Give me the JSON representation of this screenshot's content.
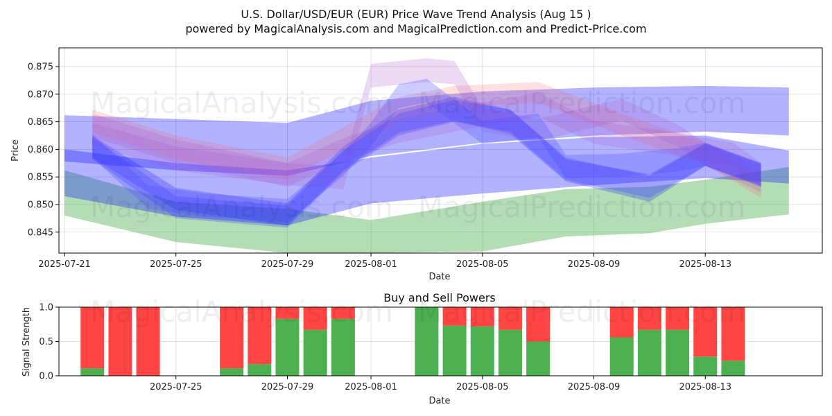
{
  "chart_data": [
    {
      "type": "area",
      "title": "U.S. Dollar/USD/EUR (EUR) Price Wave Trend Analysis (Aug 15 )",
      "subtitle": "powered by MagicalAnalysis.com and MagicalPrediction.com and Predict-Price.com",
      "xlabel": "Date",
      "ylabel": "Price",
      "x_ticks": [
        "2025-07-21",
        "2025-07-25",
        "2025-07-29",
        "2025-08-01",
        "2025-08-05",
        "2025-08-09",
        "2025-08-13"
      ],
      "y_ticks": [
        "0.845",
        "0.850",
        "0.855",
        "0.860",
        "0.865",
        "0.870",
        "0.875"
      ],
      "xlim": [
        "2025-07-20.8",
        "2025-08-17.2"
      ],
      "ylim": [
        0.8412,
        0.8784
      ],
      "grid": true,
      "bands": [
        {
          "color": "#4caf50",
          "opacity": 0.42,
          "x": [
            "2025-07-21",
            "2025-07-25",
            "2025-07-29",
            "2025-08-01",
            "2025-08-05",
            "2025-08-08",
            "2025-08-11",
            "2025-08-13",
            "2025-08-16"
          ],
          "upper": [
            0.8562,
            0.8505,
            0.8492,
            0.8472,
            0.8505,
            0.8528,
            0.8532,
            0.8545,
            0.8568
          ],
          "lower": [
            0.848,
            0.8432,
            0.8412,
            0.8412,
            0.8415,
            0.8442,
            0.8448,
            0.8465,
            0.8482
          ]
        },
        {
          "color": "#0000ff",
          "opacity": 0.3,
          "x": [
            "2025-07-21",
            "2025-07-25",
            "2025-07-29",
            "2025-08-01",
            "2025-08-05",
            "2025-08-09",
            "2025-08-13",
            "2025-08-16"
          ],
          "upper": [
            0.8662,
            0.8655,
            0.8648,
            0.8688,
            0.8705,
            0.8712,
            0.8715,
            0.8712
          ],
          "lower": [
            0.8578,
            0.8562,
            0.8552,
            0.8588,
            0.8612,
            0.8625,
            0.8632,
            0.8625
          ]
        },
        {
          "color": "#0000ff",
          "opacity": 0.3,
          "x": [
            "2025-07-21",
            "2025-07-25",
            "2025-07-29",
            "2025-08-01",
            "2025-08-05",
            "2025-08-09",
            "2025-08-13",
            "2025-08-16"
          ],
          "upper": [
            0.86,
            0.8575,
            0.8562,
            0.8585,
            0.861,
            0.8622,
            0.8625,
            0.8598
          ],
          "lower": [
            0.8515,
            0.8478,
            0.8462,
            0.8502,
            0.852,
            0.8535,
            0.8548,
            0.8538
          ]
        },
        {
          "color": "#0000ff",
          "opacity": 0.22,
          "x": [
            "2025-07-22",
            "2025-07-25",
            "2025-07-29",
            "2025-07-31",
            "2025-08-02",
            "2025-08-04",
            "2025-08-06",
            "2025-08-08",
            "2025-08-11",
            "2025-08-13",
            "2025-08-15"
          ],
          "upper": [
            0.8625,
            0.853,
            0.8502,
            0.8605,
            0.8672,
            0.8695,
            0.8672,
            0.8582,
            0.8555,
            0.8612,
            0.8575
          ],
          "lower": [
            0.8585,
            0.849,
            0.8462,
            0.8562,
            0.863,
            0.8652,
            0.8628,
            0.8542,
            0.8505,
            0.857,
            0.8532
          ]
        },
        {
          "color": "#ff6666",
          "opacity": 0.2,
          "x": [
            "2025-07-22",
            "2025-07-25",
            "2025-07-29",
            "2025-07-31",
            "2025-08-02",
            "2025-08-04",
            "2025-08-07",
            "2025-08-10",
            "2025-08-13",
            "2025-08-15"
          ],
          "upper": [
            0.8672,
            0.8625,
            0.8585,
            0.864,
            0.8695,
            0.8715,
            0.8722,
            0.8665,
            0.8612,
            0.855
          ],
          "lower": [
            0.8632,
            0.8582,
            0.8545,
            0.86,
            0.8652,
            0.8675,
            0.8685,
            0.8625,
            0.8572,
            0.8512
          ]
        },
        {
          "color": "#aa55cc",
          "opacity": 0.22,
          "x": [
            "2025-07-22",
            "2025-07-25",
            "2025-07-29",
            "2025-07-31",
            "2025-08-02",
            "2025-08-05",
            "2025-08-07",
            "2025-08-09",
            "2025-08-12",
            "2025-08-14",
            "2025-08-15"
          ],
          "upper": [
            0.8665,
            0.8618,
            0.8575,
            0.862,
            0.8655,
            0.8685,
            0.8702,
            0.8652,
            0.863,
            0.8612,
            0.8575
          ],
          "lower": [
            0.8622,
            0.8575,
            0.8532,
            0.8578,
            0.8612,
            0.8642,
            0.866,
            0.861,
            0.8588,
            0.857,
            0.8532
          ]
        },
        {
          "color": "#aa55cc",
          "opacity": 0.22,
          "x": [
            "2025-07-22",
            "2025-07-25",
            "2025-07-29",
            "2025-07-31",
            "2025-08-01",
            "2025-08-03",
            "2025-08-04",
            "2025-08-05",
            "2025-08-07",
            "2025-08-10",
            "2025-08-12",
            "2025-08-13",
            "2025-08-15"
          ],
          "upper": [
            0.8648,
            0.8605,
            0.8575,
            0.8568,
            0.8755,
            0.8765,
            0.876,
            0.8675,
            0.8655,
            0.8692,
            0.8645,
            0.8612,
            0.8565
          ],
          "lower": [
            0.8608,
            0.8562,
            0.8535,
            0.8528,
            0.8712,
            0.8722,
            0.8718,
            0.8632,
            0.8615,
            0.8652,
            0.8605,
            0.857,
            0.8522
          ]
        },
        {
          "color": "#5555ff",
          "opacity": 0.3,
          "x": [
            "2025-07-22",
            "2025-07-24",
            "2025-07-26",
            "2025-07-29",
            "2025-07-31",
            "2025-08-01",
            "2025-08-02",
            "2025-08-03",
            "2025-08-05",
            "2025-08-07",
            "2025-08-08",
            "2025-08-10",
            "2025-08-12",
            "2025-08-13",
            "2025-08-15"
          ],
          "upper": [
            0.8628,
            0.8535,
            0.852,
            0.851,
            0.8595,
            0.8648,
            0.8718,
            0.8728,
            0.8652,
            0.8665,
            0.859,
            0.8592,
            0.8602,
            0.8612,
            0.8572
          ],
          "lower": [
            0.8585,
            0.8492,
            0.8478,
            0.8468,
            0.8552,
            0.8605,
            0.8675,
            0.8685,
            0.861,
            0.8622,
            0.8548,
            0.855,
            0.856,
            0.857,
            0.8532
          ]
        },
        {
          "color": "#3333ff",
          "opacity": 0.25,
          "x": [
            "2025-07-22",
            "2025-07-25",
            "2025-07-29",
            "2025-07-31",
            "2025-08-02",
            "2025-08-04",
            "2025-08-06",
            "2025-08-08",
            "2025-08-11",
            "2025-08-13",
            "2025-08-15"
          ],
          "upper": [
            0.8622,
            0.8515,
            0.8498,
            0.8598,
            0.8665,
            0.869,
            0.8672,
            0.8585,
            0.8552,
            0.861,
            0.8575
          ],
          "lower": [
            0.8582,
            0.8475,
            0.8458,
            0.8558,
            0.8625,
            0.865,
            0.8632,
            0.8545,
            0.8512,
            0.857,
            0.8535
          ]
        }
      ]
    },
    {
      "type": "bar",
      "title": "Buy and Sell Powers",
      "xlabel": "Date",
      "ylabel": "Signal Strength",
      "x_ticks": [
        "2025-07-25",
        "2025-07-29",
        "2025-08-01",
        "2025-08-05",
        "2025-08-09",
        "2025-08-13"
      ],
      "y_ticks": [
        "0.0",
        "0.5",
        "1.0"
      ],
      "ylim": [
        0,
        1
      ],
      "grid": true,
      "buy_color": "#4caf50",
      "sell_color": "#ff4444",
      "x": [
        "2025-07-22",
        "2025-07-23",
        "2025-07-24",
        "2025-07-27",
        "2025-07-28",
        "2025-07-29",
        "2025-07-30",
        "2025-07-31",
        "2025-08-03",
        "2025-08-04",
        "2025-08-05",
        "2025-08-06",
        "2025-08-07",
        "2025-08-10",
        "2025-08-11",
        "2025-08-12",
        "2025-08-13",
        "2025-08-14"
      ],
      "series": [
        {
          "name": "",
          "values": [
            0.11,
            0.0,
            0.0,
            0.11,
            0.17,
            0.83,
            0.67,
            0.83,
            1.0,
            0.73,
            0.72,
            0.67,
            0.5,
            0.56,
            0.67,
            0.67,
            0.28,
            0.22
          ]
        },
        {
          "name": "",
          "values": [
            0.89,
            1.0,
            1.0,
            0.89,
            0.83,
            0.17,
            0.33,
            0.17,
            0.0,
            0.27,
            0.28,
            0.33,
            0.5,
            0.44,
            0.33,
            0.33,
            0.72,
            0.78
          ]
        }
      ]
    }
  ],
  "watermarks": [
    "MagicalAnalysis.com",
    "MagicalPrediction.com"
  ]
}
